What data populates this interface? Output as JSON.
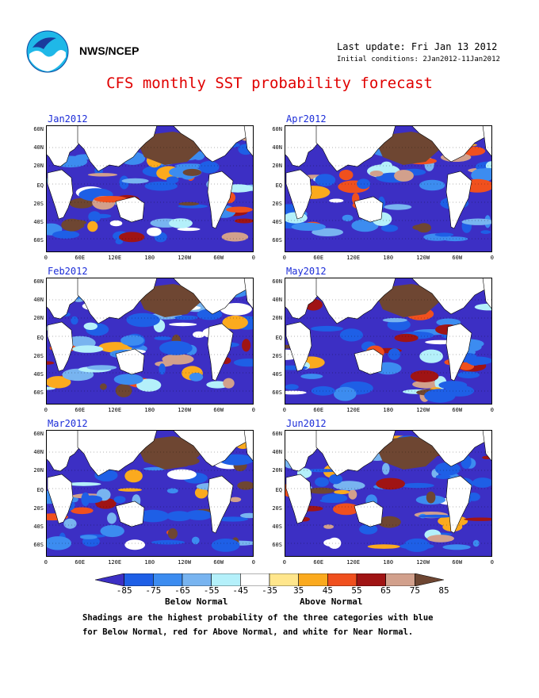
{
  "header": {
    "org": "NWS/NCEP",
    "last_update": "Last update: Fri Jan 13 2012",
    "initial_conditions": "Initial conditions: 2Jan2012-11Jan2012",
    "title": "CFS monthly SST probability forecast"
  },
  "panels": [
    {
      "label": "Jan2012"
    },
    {
      "label": "Feb2012"
    },
    {
      "label": "Mar2012"
    },
    {
      "label": "Apr2012"
    },
    {
      "label": "May2012"
    },
    {
      "label": "Jun2012"
    }
  ],
  "axes": {
    "lat": [
      "60N",
      "40N",
      "20N",
      "EQ",
      "20S",
      "40S",
      "60S"
    ],
    "lon": [
      "0",
      "60E",
      "120E",
      "180",
      "120W",
      "60W",
      "0"
    ]
  },
  "colorbar": {
    "labels": [
      "-85",
      "-75",
      "-65",
      "-55",
      "-45",
      "-35",
      "35",
      "45",
      "55",
      "65",
      "75",
      "85"
    ],
    "colors": [
      "#3c2fc4",
      "#1e5fe6",
      "#3c8cf0",
      "#78b4f0",
      "#b4f0fa",
      "#ffffff",
      "#ffe68c",
      "#fbaa1e",
      "#f0501e",
      "#a01414",
      "#d2a08c",
      "#6e4632"
    ],
    "below_label": "Below Normal",
    "above_label": "Above Normal"
  },
  "caption": {
    "line1": "Shadings are the highest probability of the three categories with blue",
    "line2": "for Below Normal, red for Above Normal, and white for Near Normal."
  }
}
